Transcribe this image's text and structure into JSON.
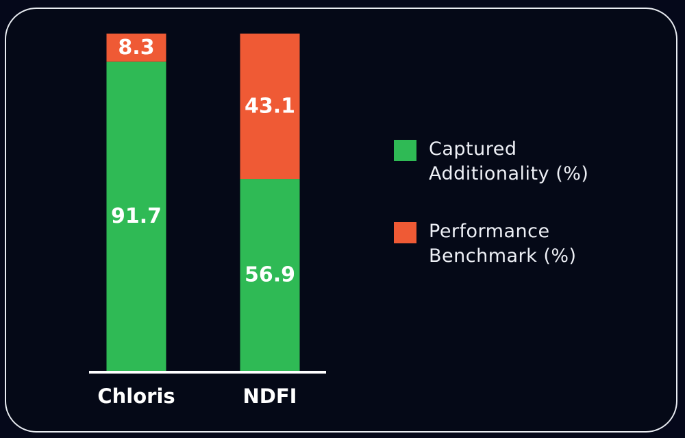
{
  "chart_data": {
    "type": "bar",
    "stacked": true,
    "categories": [
      "Chloris",
      "NDFI"
    ],
    "series": [
      {
        "name": "Captured Additionality (%)",
        "values": [
          91.7,
          56.9
        ],
        "color": "#2fba55",
        "label_color": "#ffffff"
      },
      {
        "name": "Performance Benchmark (%)",
        "values": [
          8.3,
          43.1
        ],
        "color": "#ef5a35",
        "label_color": "#ffffff"
      }
    ],
    "ylim": [
      0,
      100
    ],
    "title": "",
    "xlabel": "",
    "ylabel": "",
    "grid": false,
    "legend_position": "right",
    "background": "#05081a",
    "axis_color": "#ffffff"
  }
}
